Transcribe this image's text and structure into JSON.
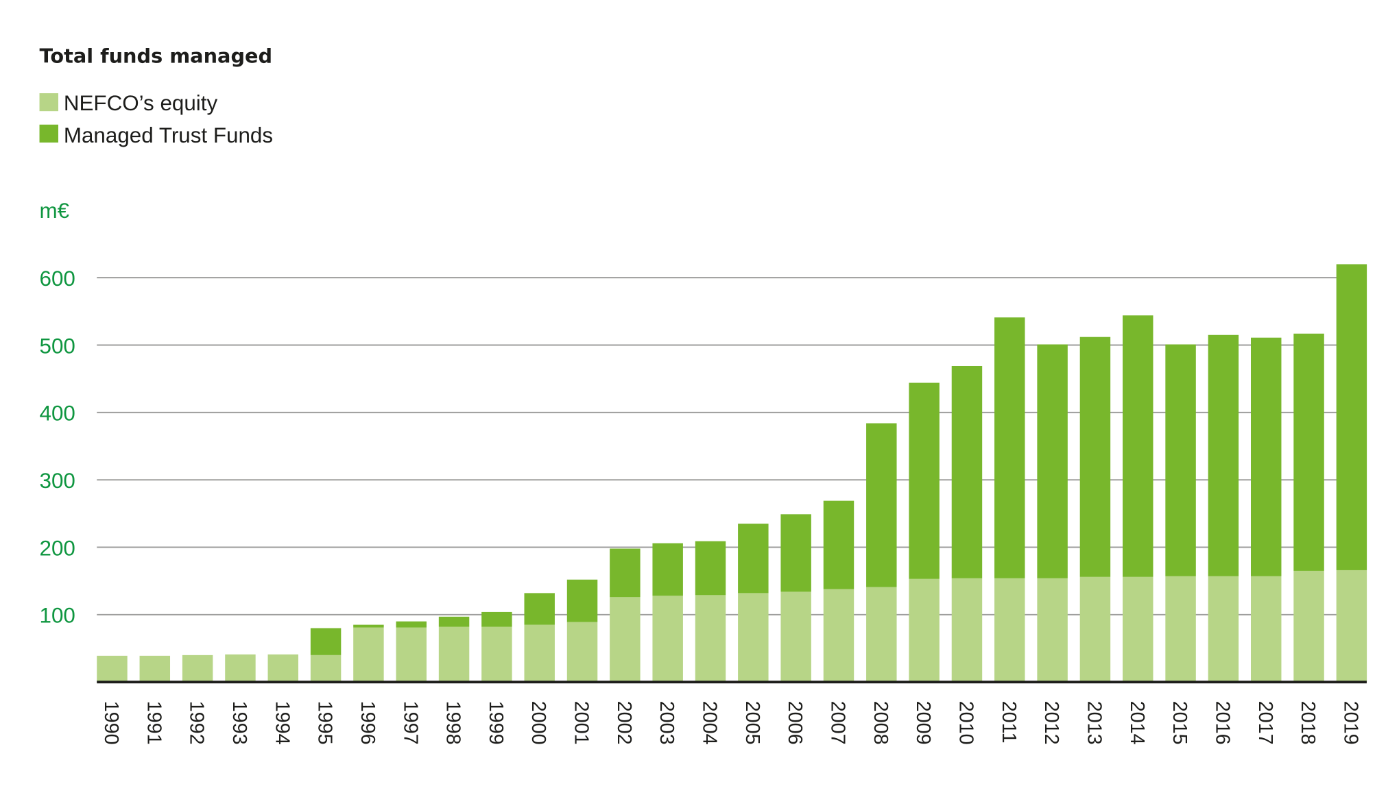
{
  "chart_data": {
    "type": "bar",
    "stacked": true,
    "title": "Total funds managed",
    "ylabel": "m€",
    "xlabel": "",
    "ylim": [
      0,
      620
    ],
    "yticks": [
      100,
      200,
      300,
      400,
      500,
      600
    ],
    "grid": true,
    "legend_placement": "top-left",
    "categories": [
      "1990",
      "1991",
      "1992",
      "1993",
      "1994",
      "1995",
      "1996",
      "1997",
      "1998",
      "1999",
      "2000",
      "2001",
      "2002",
      "2003",
      "2004",
      "2005",
      "2006",
      "2007",
      "2008",
      "2009",
      "2010",
      "2011",
      "2012",
      "2013",
      "2014",
      "2015",
      "2016",
      "2017",
      "2018",
      "2019"
    ],
    "series": [
      {
        "name": "NEFCO’s equity",
        "color": "#b7d587",
        "values": [
          39,
          39,
          40,
          41,
          41,
          40,
          81,
          81,
          82,
          82,
          85,
          89,
          126,
          128,
          129,
          132,
          134,
          138,
          141,
          153,
          154,
          154,
          154,
          156,
          156,
          157,
          157,
          157,
          165,
          166
        ]
      },
      {
        "name": "Managed Trust Funds",
        "color": "#78b72c",
        "values": [
          0,
          0,
          0,
          0,
          0,
          40,
          4,
          9,
          15,
          22,
          47,
          63,
          72,
          78,
          80,
          103,
          115,
          131,
          243,
          291,
          315,
          387,
          347,
          356,
          388,
          344,
          358,
          354,
          352,
          454
        ]
      }
    ],
    "totals": [
      39,
      39,
      40,
      41,
      41,
      80,
      85,
      90,
      97,
      104,
      132,
      152,
      198,
      206,
      209,
      235,
      249,
      269,
      384,
      444,
      469,
      541,
      501,
      512,
      544,
      501,
      515,
      511,
      517,
      620
    ]
  }
}
